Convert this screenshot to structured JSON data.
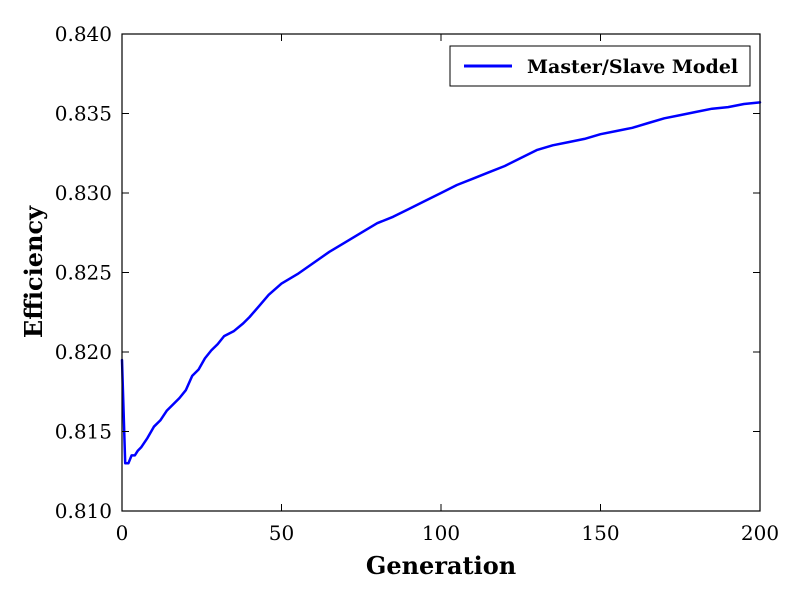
{
  "chart_data": {
    "type": "line",
    "xlabel": "Generation",
    "ylabel": "Efficiency",
    "xlim": [
      0,
      200
    ],
    "ylim": [
      0.81,
      0.84
    ],
    "x_ticks": [
      0,
      50,
      100,
      150,
      200
    ],
    "x_tick_labels": [
      "0",
      "50",
      "100",
      "150",
      "200"
    ],
    "y_ticks": [
      0.81,
      0.815,
      0.82,
      0.825,
      0.83,
      0.835,
      0.84
    ],
    "y_tick_labels": [
      "0.810",
      "0.815",
      "0.820",
      "0.825",
      "0.830",
      "0.835",
      "0.840"
    ],
    "grid": false,
    "legend_position": "top-right",
    "series": [
      {
        "name": "Master/Slave Model",
        "color": "#0000ff",
        "x": [
          0,
          1,
          2,
          3,
          4,
          5,
          6,
          8,
          10,
          12,
          14,
          16,
          18,
          20,
          22,
          24,
          26,
          28,
          30,
          32,
          35,
          38,
          40,
          43,
          46,
          50,
          55,
          60,
          65,
          70,
          75,
          80,
          85,
          90,
          95,
          100,
          105,
          110,
          115,
          120,
          125,
          130,
          135,
          140,
          145,
          150,
          155,
          160,
          165,
          170,
          175,
          180,
          185,
          190,
          195,
          200
        ],
        "y": [
          0.8195,
          0.813,
          0.813,
          0.8135,
          0.8135,
          0.8138,
          0.814,
          0.8146,
          0.8153,
          0.8157,
          0.8163,
          0.8167,
          0.8171,
          0.8176,
          0.8185,
          0.8189,
          0.8196,
          0.8201,
          0.8205,
          0.821,
          0.8213,
          0.8218,
          0.8222,
          0.8229,
          0.8236,
          0.8243,
          0.8249,
          0.8256,
          0.8263,
          0.8269,
          0.8275,
          0.8281,
          0.8285,
          0.829,
          0.8295,
          0.83,
          0.8305,
          0.8309,
          0.8313,
          0.8317,
          0.8322,
          0.8327,
          0.833,
          0.8332,
          0.8334,
          0.8337,
          0.8339,
          0.8341,
          0.8344,
          0.8347,
          0.8349,
          0.8351,
          0.8353,
          0.8354,
          0.8356,
          0.8357
        ]
      }
    ]
  }
}
